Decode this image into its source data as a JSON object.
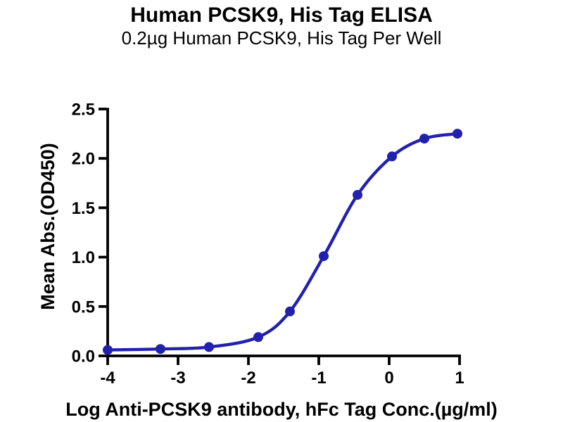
{
  "chart_data": {
    "type": "scatter",
    "title": "Human PCSK9, His Tag ELISA",
    "subtitle": "0.2µg Human PCSK9, His Tag Per Well",
    "xlabel": "Log Anti-PCSK9 antibody, hFc Tag Conc.(µg/ml)",
    "ylabel": "Mean Abs.(OD450)",
    "xlim": [
      -4,
      1
    ],
    "ylim": [
      0,
      2.5
    ],
    "x_ticks": [
      -4,
      -3,
      -2,
      -1,
      0,
      1
    ],
    "y_ticks": [
      0,
      0.5,
      1,
      1.5,
      2,
      2.5
    ],
    "grid": false,
    "legend": "none",
    "line_color": "#2121ad",
    "axis_color": "#000000",
    "marker": "filled-circle",
    "series": [
      {
        "name": "Anti-PCSK9 antibody, hFc Tag",
        "x": [
          -4,
          -3.25,
          -2.56,
          -1.86,
          -1.41,
          -0.93,
          -0.45,
          0.04,
          0.5,
          0.97
        ],
        "od450": [
          0.06,
          0.07,
          0.09,
          0.19,
          0.45,
          1.01,
          1.63,
          2.02,
          2.2,
          2.25
        ]
      }
    ]
  }
}
